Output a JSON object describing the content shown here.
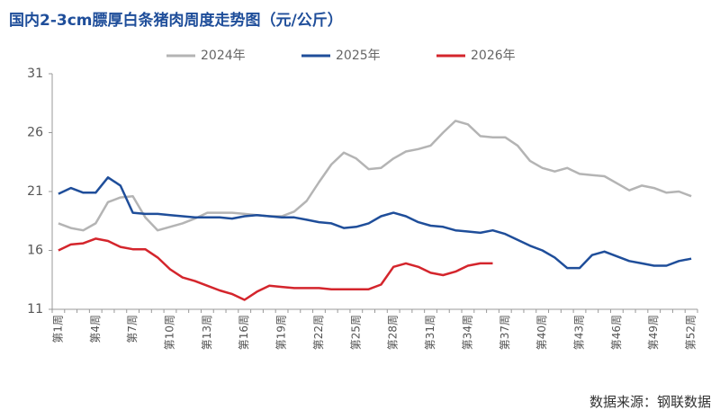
{
  "chart_data": {
    "type": "line",
    "title": "国内2-3cm膘厚白条猪肉周度走势图（元/公斤）",
    "source": "数据来源：钢联数据",
    "categories": [
      "第1周",
      null,
      null,
      "第4周",
      null,
      null,
      "第7周",
      null,
      null,
      "第10周",
      null,
      null,
      "第13周",
      null,
      null,
      "第16周",
      null,
      null,
      "第19周",
      null,
      null,
      "第22周",
      null,
      null,
      "第25周",
      null,
      null,
      "第28周",
      null,
      null,
      "第31周",
      null,
      null,
      "第34周",
      null,
      null,
      "第37周",
      null,
      null,
      "第40周",
      null,
      null,
      "第43周",
      null,
      null,
      "第46周",
      null,
      null,
      "第49周",
      null,
      null,
      "第52周"
    ],
    "series": [
      {
        "name": "2024年",
        "color": "#b4b4b4",
        "values": [
          18.3,
          17.9,
          17.7,
          18.3,
          20.1,
          20.5,
          20.6,
          18.8,
          17.7,
          18.0,
          18.3,
          18.7,
          19.2,
          19.2,
          19.2,
          19.1,
          19.0,
          18.9,
          18.9,
          19.3,
          20.2,
          21.8,
          23.3,
          24.3,
          23.8,
          22.9,
          23.0,
          23.8,
          24.4,
          24.6,
          24.9,
          26.0,
          27.0,
          26.7,
          25.7,
          25.6,
          25.6,
          24.9,
          23.6,
          23.0,
          22.7,
          23.0,
          22.5,
          22.4,
          22.3,
          21.7,
          21.1,
          21.5,
          21.3,
          20.9,
          21.0,
          20.6
        ]
      },
      {
        "name": "2025年",
        "color": "#1f4e9a",
        "values": [
          20.8,
          21.3,
          20.9,
          20.9,
          22.2,
          21.5,
          19.2,
          19.1,
          19.1,
          19.0,
          18.9,
          18.8,
          18.8,
          18.8,
          18.7,
          18.9,
          19.0,
          18.9,
          18.8,
          18.8,
          18.6,
          18.4,
          18.3,
          17.9,
          18.0,
          18.3,
          18.9,
          19.2,
          18.9,
          18.4,
          18.1,
          18.0,
          17.7,
          17.6,
          17.5,
          17.7,
          17.4,
          16.9,
          16.4,
          16.0,
          15.4,
          14.5,
          14.5,
          15.6,
          15.9,
          15.5,
          15.1,
          14.9,
          14.7,
          14.7,
          15.1,
          15.3
        ]
      },
      {
        "name": "2026年",
        "color": "#d4252c",
        "values": [
          16.0,
          16.5,
          16.6,
          17.0,
          16.8,
          16.3,
          16.1,
          16.1,
          15.4,
          14.4,
          13.7,
          13.4,
          13.0,
          12.6,
          12.3,
          11.8,
          12.5,
          13.0,
          12.9,
          12.8,
          12.8,
          12.8,
          12.7,
          12.7,
          12.7,
          12.7,
          13.1,
          14.6,
          14.9,
          14.6,
          14.1,
          13.9,
          14.2,
          14.7,
          14.9,
          14.9,
          null,
          null,
          null,
          null,
          null,
          null,
          null,
          null,
          null,
          null,
          null,
          null,
          null,
          null,
          null,
          null
        ]
      }
    ],
    "ylim": [
      11,
      31
    ],
    "yticks": [
      11,
      16,
      21,
      26,
      31
    ],
    "grid": false,
    "legend": "top"
  }
}
